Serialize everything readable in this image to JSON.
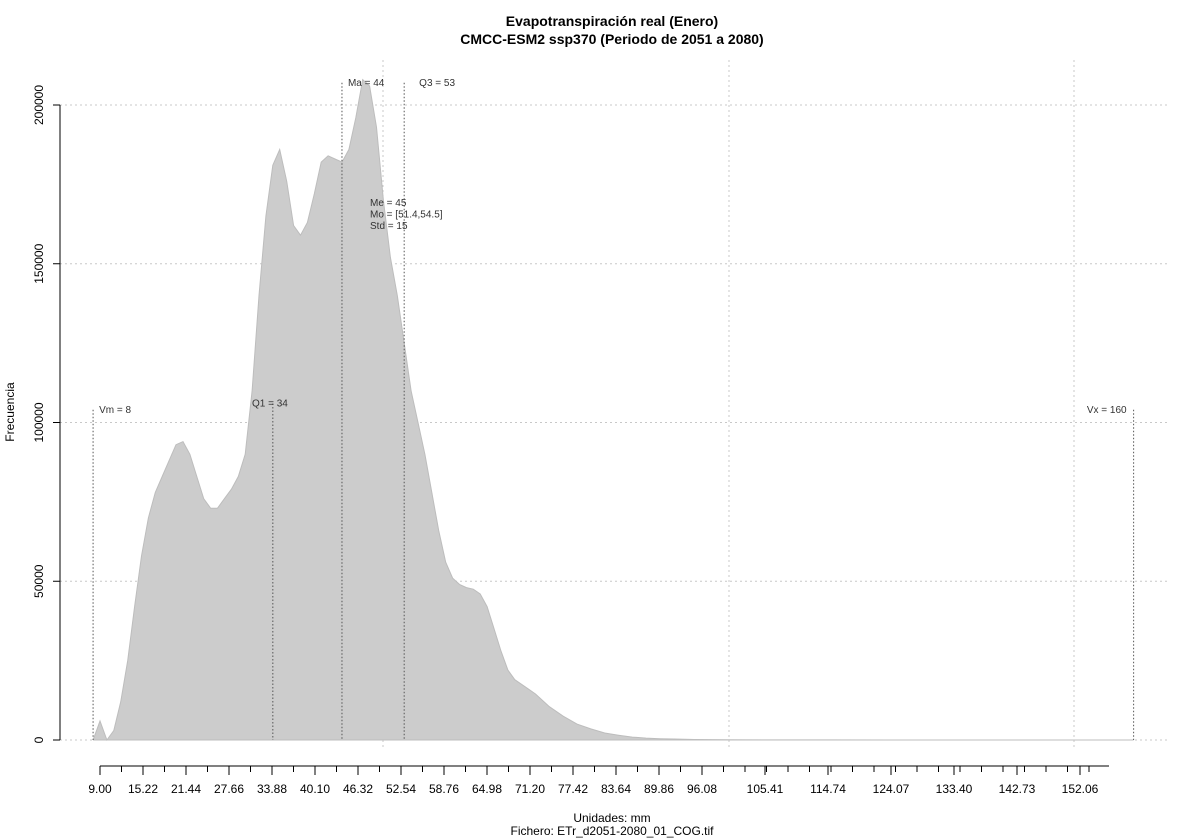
{
  "chart_data": {
    "type": "area",
    "title": "Evapotranspiración real (Enero)",
    "subtitle": "CMCC-ESM2 ssp370 (Periodo de 2051 a 2080)",
    "xlabel": "Unidades: mm",
    "caption": "Fichero: ETr_d2051-2080_01_COG.tif",
    "ylabel": "Frecuencia",
    "xlim": [
      9.0,
      162.0
    ],
    "ylim": [
      0,
      210000
    ],
    "x_ticks": [
      "9.00",
      "15.22",
      "21.44",
      "27.66",
      "33.88",
      "40.10",
      "46.32",
      "52.54",
      "58.76",
      "64.98",
      "71.20",
      "77.42",
      "83.64",
      "89.86",
      "96.08",
      "105.41",
      "114.74",
      "124.07",
      "133.40",
      "142.73",
      "152.06"
    ],
    "y_ticks": [
      "0",
      "50000",
      "100000",
      "150000",
      "200000"
    ],
    "grid": true,
    "fill_color": "#cccccc",
    "series": [
      {
        "x": [
          8.0,
          9.0,
          10.0,
          11.0,
          12.0,
          13.0,
          14.0,
          15.0,
          16.0,
          17.0,
          18.0,
          19.0,
          20.0,
          21.0,
          22.0,
          23.0,
          24.0,
          25.0,
          26.0,
          27.0,
          28.0,
          29.0,
          30.0,
          31.0,
          32.0,
          33.0,
          34.0,
          35.0,
          36.0,
          37.0,
          38.0,
          39.0,
          40.0,
          41.0,
          42.0,
          43.0,
          44.0,
          45.0,
          46.0,
          47.0,
          48.0,
          49.0,
          50.0,
          51.0,
          52.0,
          53.0,
          54.0,
          55.0,
          56.0,
          57.0,
          58.0,
          59.0,
          60.0,
          61.0,
          62.0,
          63.0,
          64.0,
          65.0,
          66.0,
          67.0,
          68.0,
          69.0,
          70.0,
          71.0,
          72.0,
          74.0,
          76.0,
          78.0,
          80.0,
          82.0,
          84.0,
          86.0,
          88.0,
          90.0,
          92.0,
          95.0,
          100.0,
          105.0,
          115.0,
          125.0,
          140.0,
          160.0
        ],
        "y": [
          0,
          6000,
          0,
          3000,
          12000,
          25000,
          42000,
          58000,
          70000,
          78000,
          83000,
          88000,
          93000,
          94000,
          90000,
          83000,
          76000,
          73000,
          73000,
          76000,
          79000,
          83000,
          90000,
          110000,
          140000,
          165000,
          181000,
          186000,
          176000,
          162000,
          159000,
          163000,
          172000,
          182000,
          184000,
          183000,
          182000,
          186000,
          196000,
          208000,
          206000,
          193000,
          170000,
          152000,
          140000,
          125000,
          110000,
          100000,
          90000,
          78000,
          66000,
          56000,
          51000,
          49000,
          48000,
          47500,
          46000,
          42000,
          35000,
          28000,
          22000,
          19000,
          17500,
          16000,
          14500,
          10500,
          7500,
          5000,
          3500,
          2200,
          1500,
          900,
          600,
          400,
          300,
          150,
          80,
          40,
          20,
          10,
          5,
          0
        ]
      }
    ],
    "reference_lines": [
      {
        "x": 8,
        "label": "Vm = 8",
        "y_top": 104000
      },
      {
        "x": 34,
        "label": "Q1 = 34",
        "y_top": 106000
      },
      {
        "x": 44,
        "label": "Ma = 44",
        "y_top": 207000
      },
      {
        "x": 53,
        "label": "Q3 = 53",
        "y_top": 207000
      },
      {
        "x": 160,
        "label": "Vx = 160",
        "y_top": 104000
      }
    ],
    "stats_box": [
      "Me = 45",
      "Mo = [51.4,54.5]",
      "Std = 15"
    ]
  }
}
